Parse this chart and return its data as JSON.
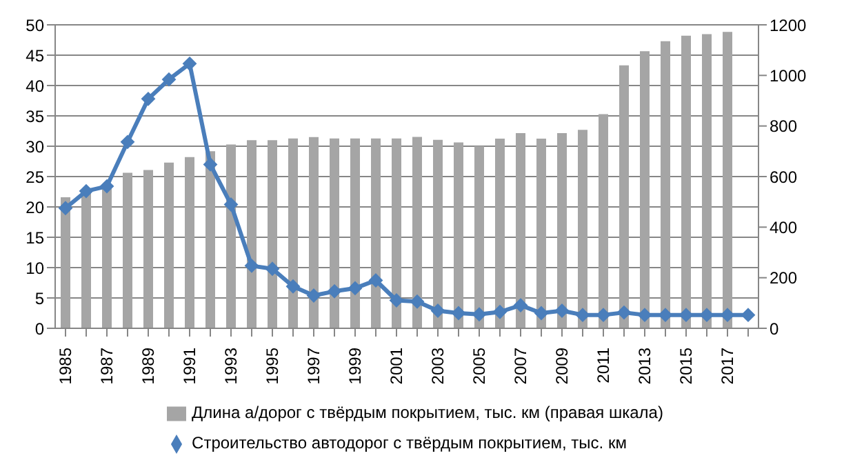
{
  "chart_data": {
    "type": "bar",
    "categories": [
      "1985",
      null,
      "1987",
      null,
      "1989",
      null,
      "1991",
      null,
      "1993",
      null,
      "1995",
      null,
      "1997",
      null,
      "1999",
      null,
      "2001",
      null,
      "2003",
      null,
      "2005",
      null,
      "2007",
      null,
      "2009",
      null,
      "2011",
      null,
      "2013",
      null,
      "2015",
      null,
      "2017",
      null
    ],
    "series": [
      {
        "name": "Длина а/дорог с твёрдым покрытием, тыс. км (правая шкала)",
        "axis": "y2",
        "color": "#a5a5a5",
        "values": [
          518,
          545,
          560,
          615,
          626,
          655,
          677,
          700,
          727,
          744,
          744,
          751,
          756,
          751,
          751,
          751,
          751,
          757,
          745,
          735,
          720,
          750,
          772,
          750,
          772,
          785,
          847,
          1040,
          1096,
          1135,
          1157,
          1163,
          1172,
          null
        ]
      },
      {
        "name": "Строительство автодорог с твёрдым покрытием, тыс. км",
        "type": "line",
        "color": "#4a7ebb",
        "marker": "diamond",
        "values": [
          19.8,
          22.6,
          23.4,
          30.7,
          37.8,
          41.0,
          43.6,
          27.0,
          20.4,
          10.3,
          9.8,
          6.9,
          5.4,
          6.1,
          6.6,
          7.9,
          4.6,
          4.4,
          2.9,
          2.5,
          2.3,
          2.7,
          3.8,
          2.5,
          2.9,
          2.2,
          2.2,
          2.6,
          2.2,
          2.2,
          2.2,
          2.2,
          2.2,
          2.2
        ]
      }
    ],
    "ylim": [
      0,
      50
    ],
    "yticks": [
      0,
      5,
      10,
      15,
      20,
      25,
      30,
      35,
      40,
      45,
      50
    ],
    "y2lim": [
      0,
      1200
    ],
    "y2ticks": [
      0,
      200,
      400,
      600,
      800,
      1000,
      1200
    ],
    "grid": "y",
    "legend": "bottom"
  }
}
